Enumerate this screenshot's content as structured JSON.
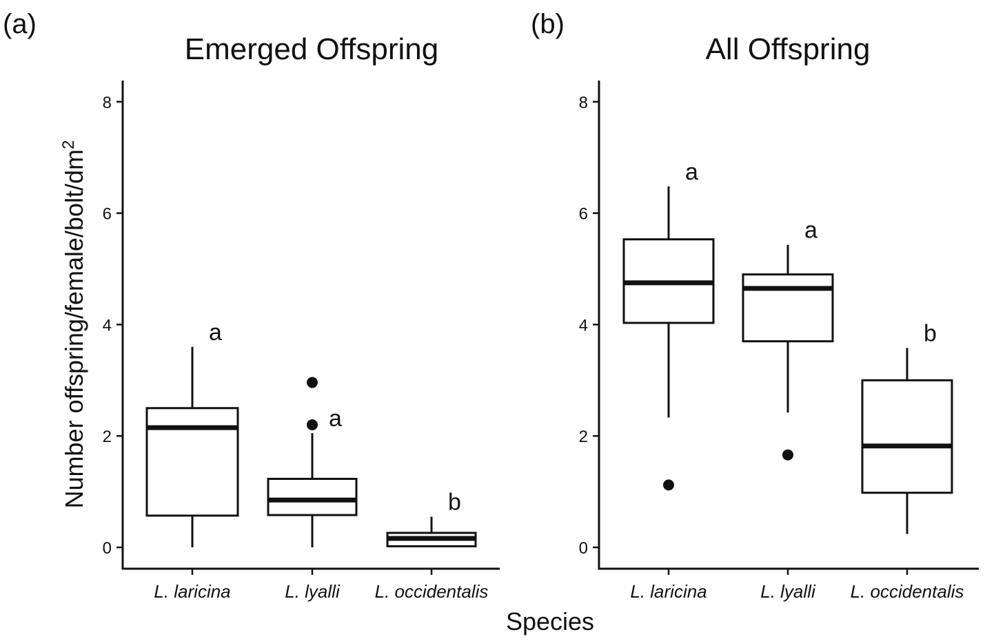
{
  "chart_data": [
    {
      "type": "box",
      "panel_label": "(a)",
      "title": "Emerged Offspring",
      "ylabel": "Number offspring/female/bolt/dm",
      "ylabel_superscript": "2",
      "ylim": [
        -0.4,
        8.4
      ],
      "yticks": [
        0,
        2,
        4,
        6,
        8
      ],
      "categories": [
        "L. laricina",
        "L. lyalli",
        "L. occidentalis"
      ],
      "boxes": [
        {
          "category": "L. laricina",
          "whisker_low": 0.0,
          "q1": 0.57,
          "median": 2.15,
          "q3": 2.5,
          "whisker_high": 3.6,
          "outliers": [],
          "letter": "a"
        },
        {
          "category": "L. lyalli",
          "whisker_low": 0.0,
          "q1": 0.58,
          "median": 0.85,
          "q3": 1.23,
          "whisker_high": 2.05,
          "outliers": [
            2.2,
            2.96
          ],
          "letter": "a"
        },
        {
          "category": "L. occidentalis",
          "whisker_low": 0.02,
          "q1": 0.02,
          "median": 0.16,
          "q3": 0.26,
          "whisker_high": 0.55,
          "outliers": [],
          "letter": "b"
        }
      ]
    },
    {
      "type": "box",
      "panel_label": "(b)",
      "title": "All Offspring",
      "ylim": [
        -0.4,
        8.4
      ],
      "yticks": [
        0,
        2,
        4,
        6,
        8
      ],
      "categories": [
        "L. laricina",
        "L. lyalli",
        "L. occidentalis"
      ],
      "boxes": [
        {
          "category": "L. laricina",
          "whisker_low": 2.33,
          "q1": 4.03,
          "median": 4.75,
          "q3": 5.53,
          "whisker_high": 6.48,
          "outliers": [
            1.12
          ],
          "letter": "a"
        },
        {
          "category": "L. lyalli",
          "whisker_low": 2.42,
          "q1": 3.7,
          "median": 4.65,
          "q3": 4.9,
          "whisker_high": 5.43,
          "outliers": [
            1.66
          ],
          "letter": "a"
        },
        {
          "category": "L. occidentalis",
          "whisker_low": 0.24,
          "q1": 0.98,
          "median": 1.82,
          "q3": 3.0,
          "whisker_high": 3.58,
          "outliers": [],
          "letter": "b"
        }
      ]
    }
  ],
  "shared_xlabel": "Species"
}
